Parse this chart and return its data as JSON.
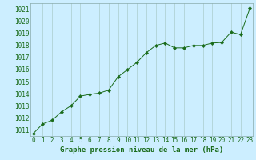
{
  "x": [
    0,
    1,
    2,
    3,
    4,
    5,
    6,
    7,
    8,
    9,
    10,
    11,
    12,
    13,
    14,
    15,
    16,
    17,
    18,
    19,
    20,
    21,
    22,
    23
  ],
  "y": [
    1010.7,
    1011.5,
    1011.8,
    1012.5,
    1013.0,
    1013.8,
    1013.95,
    1014.05,
    1014.3,
    1015.4,
    1016.0,
    1016.6,
    1017.4,
    1018.0,
    1018.2,
    1017.8,
    1017.8,
    1018.0,
    1018.0,
    1018.2,
    1018.25,
    1019.1,
    1018.9,
    1021.1
  ],
  "ylim_min": 1010.5,
  "ylim_max": 1021.5,
  "xlim_min": -0.3,
  "xlim_max": 23.3,
  "yticks": [
    1011,
    1012,
    1013,
    1014,
    1015,
    1016,
    1017,
    1018,
    1019,
    1020,
    1021
  ],
  "xticks": [
    0,
    1,
    2,
    3,
    4,
    5,
    6,
    7,
    8,
    9,
    10,
    11,
    12,
    13,
    14,
    15,
    16,
    17,
    18,
    19,
    20,
    21,
    22,
    23
  ],
  "xlabel": "Graphe pression niveau de la mer (hPa)",
  "line_color": "#1a6b1a",
  "marker": "D",
  "marker_size": 2.2,
  "bg_color": "#cceeff",
  "grid_color": "#aacccc",
  "tick_color": "#1a6b1a",
  "label_color": "#1a6b1a",
  "tick_fontsize": 5.5,
  "label_fontsize": 6.5
}
